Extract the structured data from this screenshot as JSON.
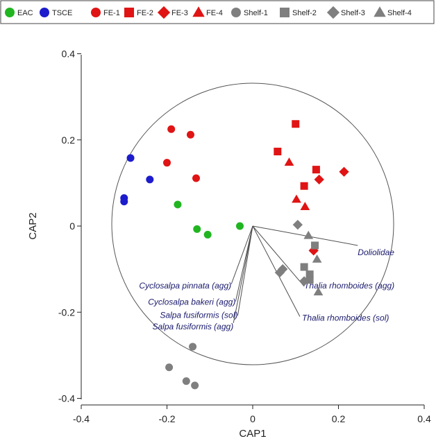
{
  "chart_data": {
    "type": "scatter",
    "xlabel": "CAP1",
    "ylabel": "CAP2",
    "xlim": [
      -0.4,
      0.4
    ],
    "ylim": [
      -0.4,
      0.4
    ],
    "xticks": [
      "-0.4",
      "-0.2",
      "0",
      "0.2",
      "0.4"
    ],
    "yticks": [
      "0.4",
      "0.2",
      "0",
      "-0.2",
      "-0.4"
    ],
    "circle_radius": 0.4,
    "colors": {
      "EAC": "#22b522",
      "TSCE": "#1c1ccc",
      "FE": "#e01414",
      "Shelf": "#7f7f7f",
      "vector_line": "#4d4d4d",
      "vector_text": "#1a1a6e"
    },
    "legend_position": "top",
    "series": [
      {
        "name": "EAC",
        "marker": "circle",
        "color": "#22b522",
        "points": [
          [
            -0.175,
            0.05
          ],
          [
            -0.13,
            -0.007
          ],
          [
            -0.105,
            -0.02
          ],
          [
            -0.03,
            0.0
          ]
        ]
      },
      {
        "name": "TSCE",
        "marker": "circle",
        "color": "#1c1ccc",
        "points": [
          [
            -0.285,
            0.158
          ],
          [
            -0.24,
            0.108
          ],
          [
            -0.3,
            0.065
          ],
          [
            -0.3,
            0.057
          ]
        ]
      },
      {
        "name": "FE-1",
        "marker": "circle",
        "color": "#e01414",
        "points": [
          [
            -0.19,
            0.225
          ],
          [
            -0.145,
            0.212
          ],
          [
            -0.2,
            0.147
          ],
          [
            -0.132,
            0.111
          ]
        ]
      },
      {
        "name": "FE-2",
        "marker": "square",
        "color": "#e01414",
        "points": [
          [
            0.1,
            0.237
          ],
          [
            0.058,
            0.173
          ],
          [
            0.148,
            0.131
          ],
          [
            0.12,
            0.093
          ]
        ]
      },
      {
        "name": "FE-3",
        "marker": "diamond",
        "color": "#e01414",
        "points": [
          [
            0.213,
            0.126
          ],
          [
            0.155,
            0.108
          ],
          [
            0.142,
            -0.057
          ]
        ]
      },
      {
        "name": "FE-4",
        "marker": "triangle",
        "color": "#e01414",
        "points": [
          [
            0.085,
            0.148
          ],
          [
            0.102,
            0.062
          ],
          [
            0.122,
            0.045
          ]
        ]
      },
      {
        "name": "Shelf-1",
        "marker": "circle",
        "color": "#7f7f7f",
        "points": [
          [
            -0.14,
            -0.28
          ],
          [
            -0.195,
            -0.328
          ],
          [
            -0.155,
            -0.36
          ],
          [
            -0.135,
            -0.37
          ]
        ]
      },
      {
        "name": "Shelf-2",
        "marker": "square",
        "color": "#7f7f7f",
        "points": [
          [
            0.12,
            -0.095
          ],
          [
            0.133,
            -0.112
          ],
          [
            0.133,
            -0.125
          ],
          [
            0.145,
            -0.045
          ]
        ]
      },
      {
        "name": "Shelf-3",
        "marker": "diamond",
        "color": "#7f7f7f",
        "points": [
          [
            0.105,
            0.003
          ],
          [
            0.07,
            -0.1
          ],
          [
            0.063,
            -0.108
          ],
          [
            0.12,
            -0.128
          ]
        ]
      },
      {
        "name": "Shelf-4",
        "marker": "triangle",
        "color": "#7f7f7f",
        "points": [
          [
            0.13,
            -0.022
          ],
          [
            0.15,
            -0.077
          ],
          [
            0.153,
            -0.153
          ]
        ]
      }
    ],
    "vectors": [
      {
        "label": "Doliolidae",
        "end": [
          0.245,
          -0.045
        ],
        "label_anchor": "start",
        "label_pos": [
          0.245,
          -0.068
        ]
      },
      {
        "label": "Thalia rhomboides (agg)",
        "end": [
          0.12,
          -0.14
        ],
        "label_anchor": "start",
        "label_pos": [
          0.12,
          -0.145
        ]
      },
      {
        "label": "Thalia rhomboides (sol)",
        "end": [
          0.11,
          -0.21
        ],
        "label_anchor": "start",
        "label_pos": [
          0.115,
          -0.22
        ]
      },
      {
        "label": "Cyclosalpa pinnata (agg)",
        "end": [
          -0.05,
          -0.135
        ],
        "label_anchor": "end",
        "label_pos": [
          -0.05,
          -0.145
        ]
      },
      {
        "label": "Cyclosalpa bakeri (agg)",
        "end": [
          -0.04,
          -0.175
        ],
        "label_anchor": "end",
        "label_pos": [
          -0.04,
          -0.183
        ]
      },
      {
        "label": "Salpa fusiformis (sol)",
        "end": [
          -0.035,
          -0.208
        ],
        "label_anchor": "end",
        "label_pos": [
          -0.035,
          -0.213
        ]
      },
      {
        "label": "Salpa fusiformis (agg)",
        "end": [
          -0.045,
          -0.225
        ],
        "label_anchor": "end",
        "label_pos": [
          -0.045,
          -0.24
        ]
      }
    ]
  }
}
